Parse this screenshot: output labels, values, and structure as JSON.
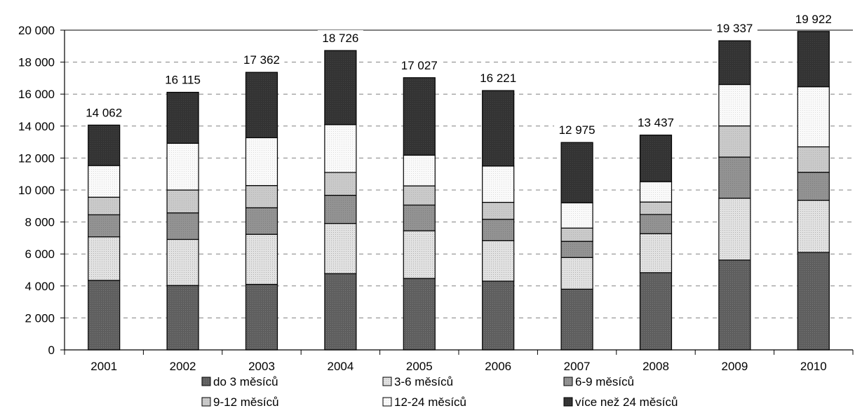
{
  "chart_data": {
    "type": "bar",
    "stacked": true,
    "title": "",
    "xlabel": "",
    "ylabel": "",
    "ylim": [
      0,
      20000
    ],
    "yticks": [
      0,
      2000,
      4000,
      6000,
      8000,
      10000,
      12000,
      14000,
      16000,
      18000,
      20000
    ],
    "ytick_labels": [
      "0",
      "2 000",
      "4 000",
      "6 000",
      "8 000",
      "10 000",
      "12 000",
      "14 000",
      "16 000",
      "18 000",
      "20 000"
    ],
    "grid": "horizontal dashed",
    "legend_position": "bottom",
    "categories": [
      "2001",
      "2002",
      "2003",
      "2004",
      "2005",
      "2006",
      "2007",
      "2008",
      "2009",
      "2010"
    ],
    "totals": [
      14062,
      16115,
      17362,
      18726,
      17027,
      16221,
      12975,
      13437,
      19337,
      19922
    ],
    "total_labels": [
      "14 062",
      "16 115",
      "17 362",
      "18 726",
      "17 027",
      "16 221",
      "12 975",
      "13 437",
      "19 337",
      "19 922"
    ],
    "series": [
      {
        "name": "do 3 měsíců",
        "color": "#5a5a5a",
        "values": [
          4350,
          4030,
          4100,
          4770,
          4470,
          4300,
          3800,
          4830,
          5620,
          6100
        ]
      },
      {
        "name": "3-6 měsíců",
        "color": "#d6d6d6",
        "values": [
          2720,
          2880,
          3130,
          3140,
          2980,
          2530,
          1980,
          2440,
          3870,
          3260
        ]
      },
      {
        "name": "6-9 měsíců",
        "color": "#8e8e8e",
        "values": [
          1380,
          1660,
          1660,
          1760,
          1610,
          1340,
          1010,
          1200,
          2570,
          1750
        ]
      },
      {
        "name": "9-12 měsíců",
        "color": "#c4c4c4",
        "values": [
          1100,
          1430,
          1390,
          1430,
          1200,
          1060,
          830,
          780,
          1950,
          1590
        ]
      },
      {
        "name": "12-24 měsíců",
        "color": "#f6f6f6",
        "values": [
          1980,
          2920,
          2990,
          2990,
          1920,
          2270,
          1580,
          1270,
          2590,
          3760
        ]
      },
      {
        "name": "více než 24 měsíců",
        "color": "#333333",
        "values": [
          2532,
          3195,
          4092,
          4636,
          4847,
          4721,
          3775,
          2917,
          2737,
          3462
        ]
      }
    ]
  }
}
